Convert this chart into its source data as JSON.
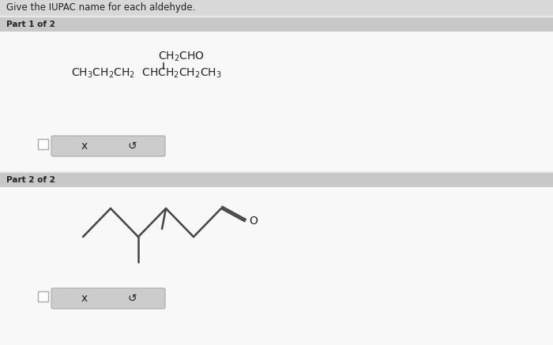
{
  "title": "Give the IUPAC name for each aldehyde.",
  "title_fontsize": 8.5,
  "bg_color": "#e8e8e8",
  "white_bg": "#f8f8f8",
  "header_bg": "#c8c8c8",
  "part1_label": "Part 1 of 2",
  "part2_label": "Part 2 of 2",
  "part_label_fontsize": 7.5,
  "formula_fontsize": 10,
  "skeletal_color": "#444444",
  "text_color": "#222222",
  "button_color": "#cccccc",
  "button_x_label": "x",
  "button_undo_label": "↺",
  "border_color": "#bbbbbb"
}
